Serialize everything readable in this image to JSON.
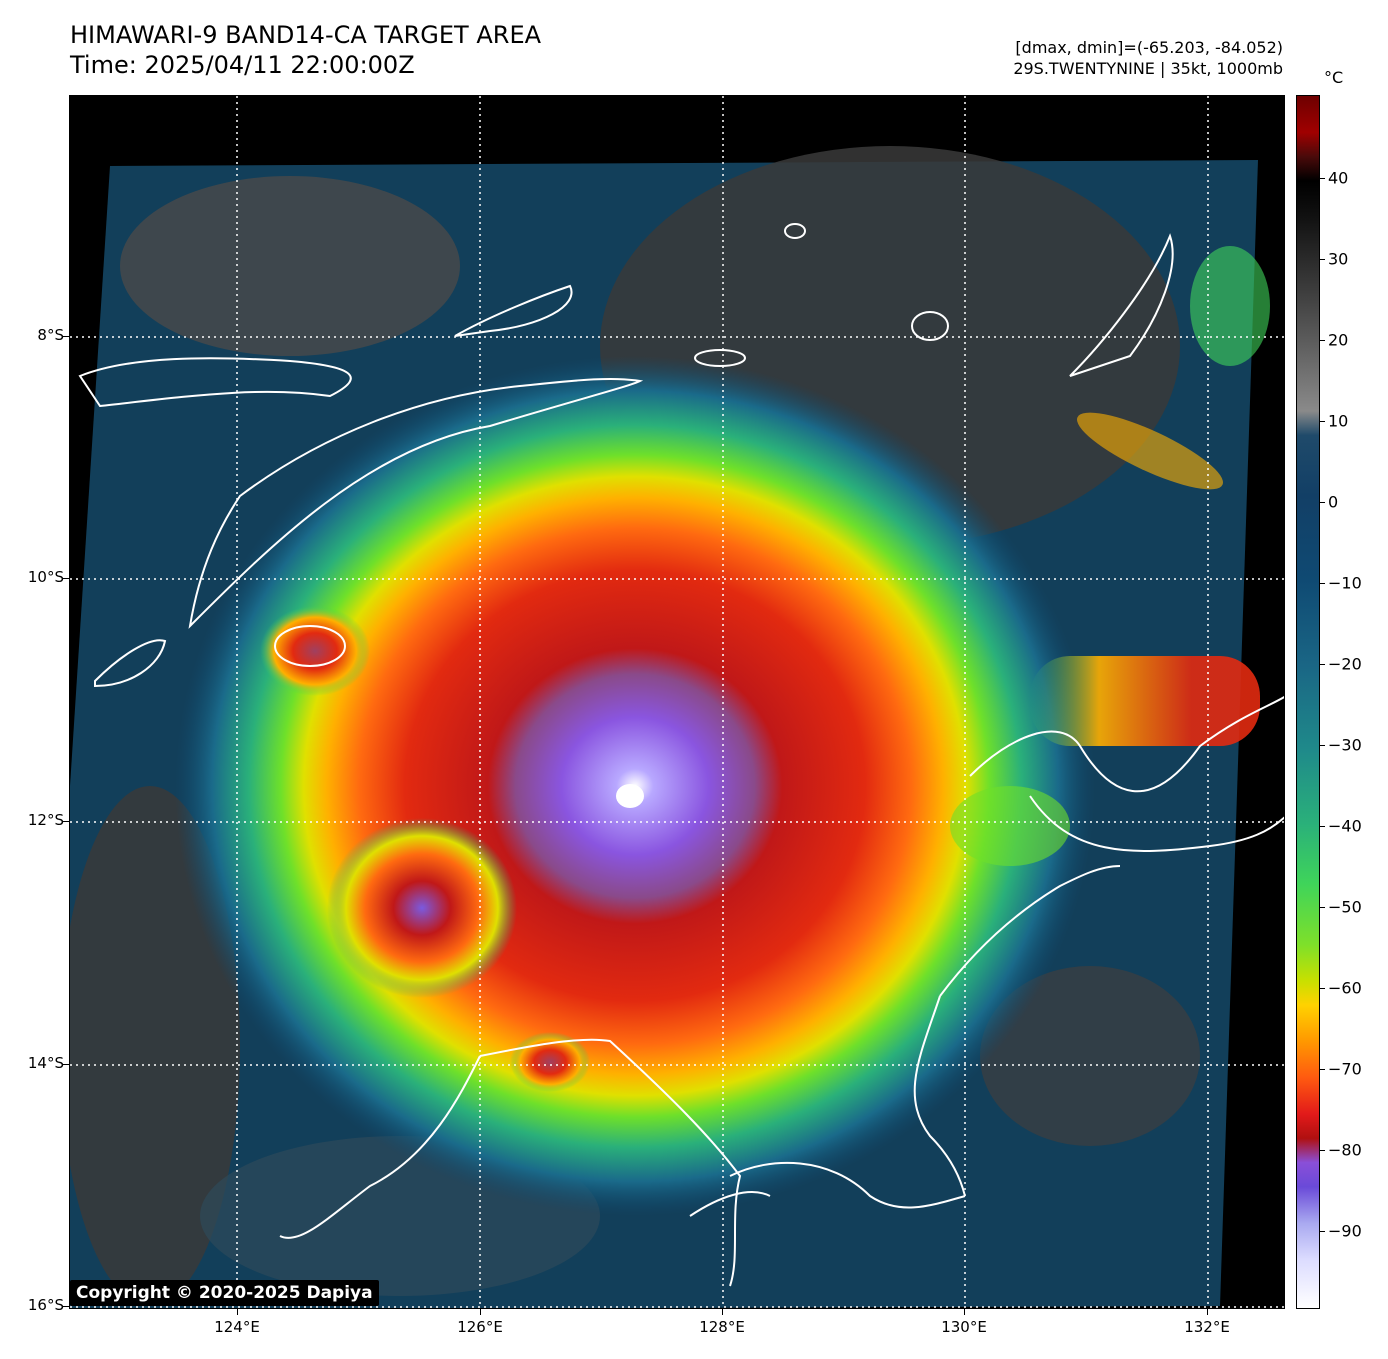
{
  "header": {
    "title_line1": "HIMAWARI-9 BAND14-CA TARGET AREA",
    "title_line2": "Time: 2025/04/11 22:00:00Z",
    "info_line1": "[dmax, dmin]=(-65.203, -84.052)",
    "info_line2": "29S.TWENTYNINE | 35kt, 1000mb"
  },
  "map": {
    "lat_labels": [
      "8°S",
      "10°S",
      "12°S",
      "14°S",
      "16°S"
    ],
    "lon_labels": [
      "124°E",
      "126°E",
      "128°E",
      "130°E",
      "132°E"
    ],
    "copyright": "Copyright © 2020-2025 Dapiya"
  },
  "colorbar": {
    "unit": "°C",
    "ticks": [
      "40",
      "30",
      "20",
      "10",
      "0",
      "−10",
      "−20",
      "−30",
      "−40",
      "−50",
      "−60",
      "−70",
      "−80",
      "−90"
    ]
  }
}
